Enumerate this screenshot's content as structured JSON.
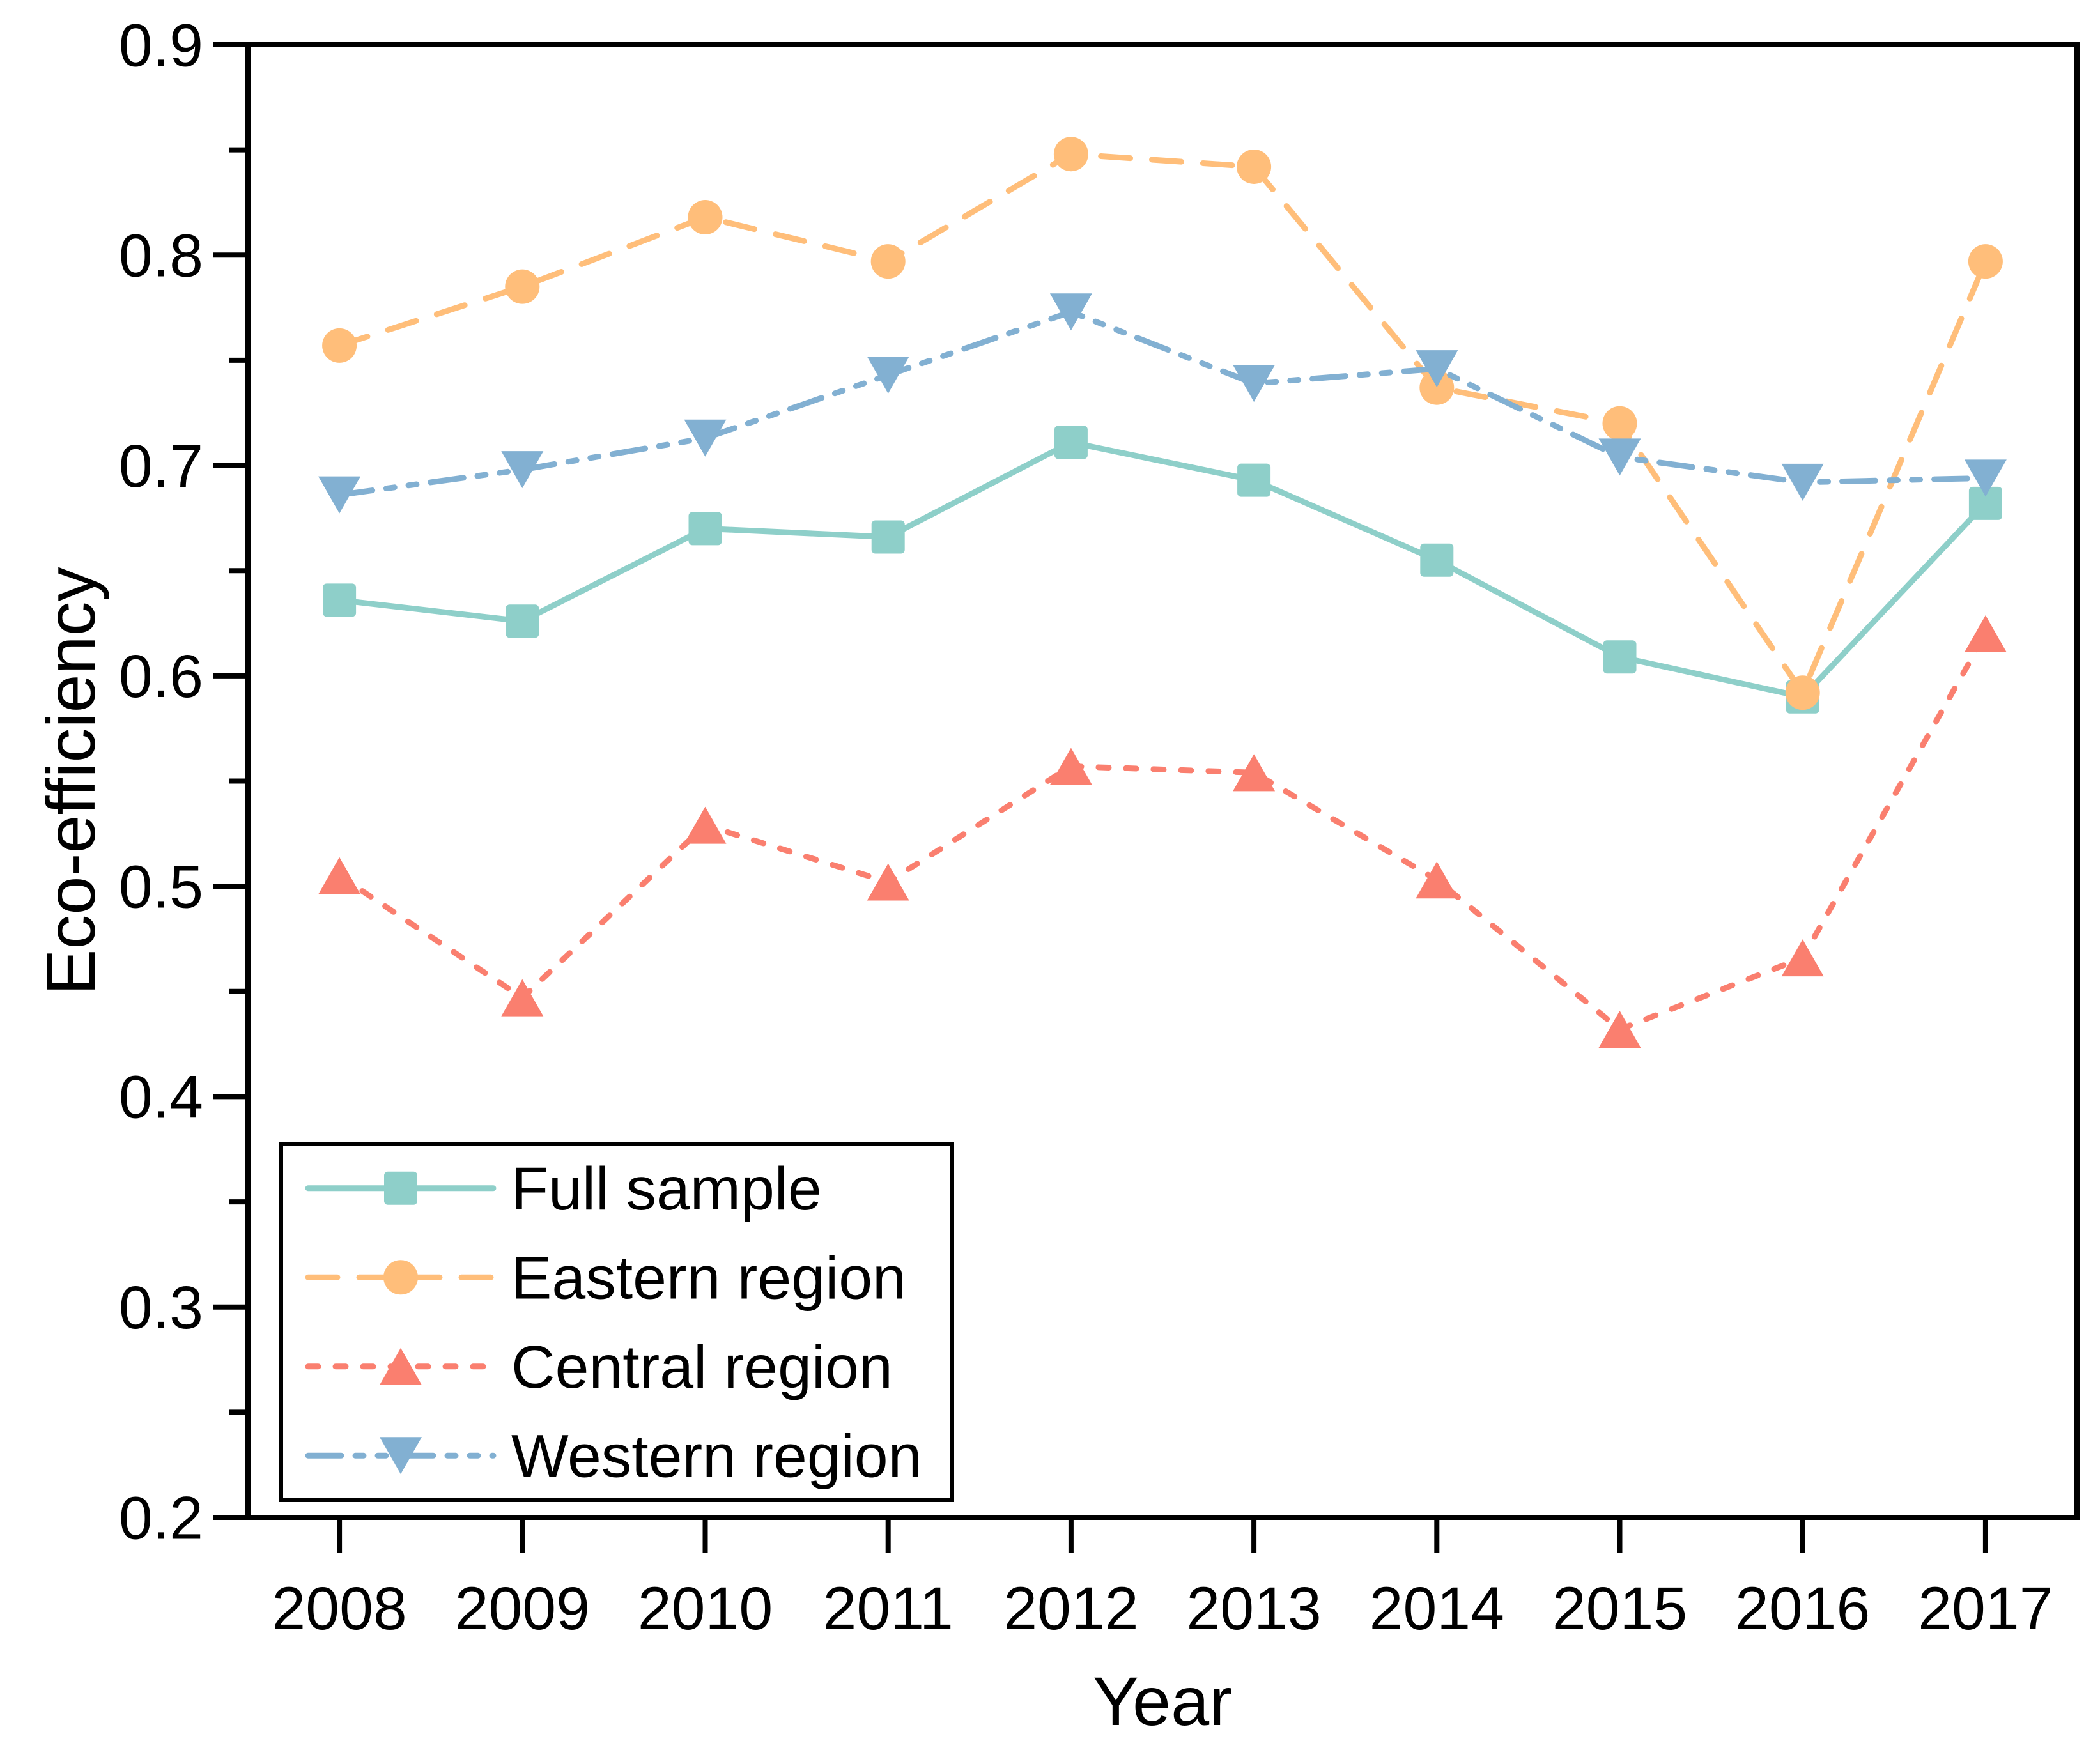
{
  "chart_data": {
    "type": "line",
    "title": "",
    "xlabel": "Year",
    "ylabel": "Eco-efficiency",
    "x": [
      2008,
      2009,
      2010,
      2011,
      2012,
      2013,
      2014,
      2015,
      2016,
      2017
    ],
    "xtick_labels": [
      "2008",
      "2009",
      "2010",
      "2011",
      "2012",
      "2013",
      "2014",
      "2015",
      "2016",
      "2017"
    ],
    "ylim": [
      0.2,
      0.9
    ],
    "ytick_values": [
      0.2,
      0.3,
      0.4,
      0.5,
      0.6,
      0.7,
      0.8,
      0.9
    ],
    "ytick_labels": [
      "0.2",
      "0.3",
      "0.4",
      "0.5",
      "0.6",
      "0.7",
      "0.8",
      "0.9"
    ],
    "yminor_step": 0.05,
    "grid": false,
    "legend_position": "lower-left",
    "axis_color": "#000000",
    "background_color": "#ffffff",
    "series": [
      {
        "name": "Full sample",
        "color": "#8ecfc9",
        "marker": "square",
        "linestyle": "solid",
        "values": [
          0.636,
          0.626,
          0.67,
          0.666,
          0.711,
          0.693,
          0.655,
          0.609,
          0.59,
          0.682
        ]
      },
      {
        "name": "Eastern region",
        "color": "#ffbe7a",
        "marker": "circle",
        "linestyle": "dashed",
        "values": [
          0.757,
          0.785,
          0.818,
          0.797,
          0.848,
          0.842,
          0.737,
          0.72,
          0.592,
          0.797
        ]
      },
      {
        "name": "Central region",
        "color": "#fa7f6f",
        "marker": "triangle-up",
        "linestyle": "dotted",
        "values": [
          0.505,
          0.447,
          0.529,
          0.502,
          0.557,
          0.554,
          0.503,
          0.432,
          0.466,
          0.62
        ]
      },
      {
        "name": "Western region",
        "color": "#82b0d2",
        "marker": "triangle-down",
        "linestyle": "dash-dot-dot",
        "values": [
          0.686,
          0.698,
          0.713,
          0.743,
          0.773,
          0.739,
          0.746,
          0.704,
          0.692,
          0.694
        ]
      }
    ]
  }
}
